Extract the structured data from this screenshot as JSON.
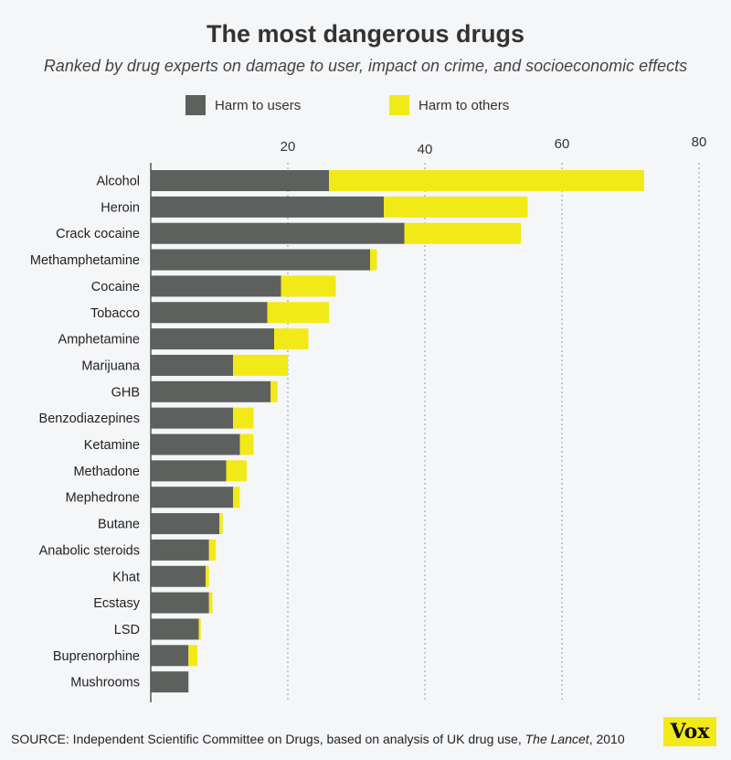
{
  "chart_data": {
    "type": "bar",
    "orientation": "horizontal",
    "stacked": true,
    "title": "The most dangerous drugs",
    "subtitle": "Ranked by drug experts on damage to user, impact on crime, and socioeconomic effects",
    "categories": [
      "Alcohol",
      "Heroin",
      "Crack cocaine",
      "Methamphetamine",
      "Cocaine",
      "Tobacco",
      "Amphetamine",
      "Marijuana",
      "GHB",
      "Benzodiazepines",
      "Ketamine",
      "Methadone",
      "Mephedrone",
      "Butane",
      "Anabolic steroids",
      "Khat",
      "Ecstasy",
      "LSD",
      "Buprenorphine",
      "Mushrooms"
    ],
    "series": [
      {
        "name": "Harm to users",
        "color": "#5e605e",
        "values": [
          26,
          34,
          37,
          32,
          19,
          17,
          18,
          12,
          17.5,
          12,
          13,
          11,
          12,
          10,
          8.5,
          8,
          8.5,
          7,
          5.5,
          5.5
        ]
      },
      {
        "name": "Harm to others",
        "color": "#f2e918",
        "values": [
          46,
          21,
          17,
          1,
          8,
          9,
          5,
          8,
          1,
          3,
          2,
          3,
          1,
          0.5,
          1,
          0.5,
          0.5,
          0.3,
          1.3,
          0
        ]
      }
    ],
    "xticks": [
      "20",
      "40",
      "60",
      "80"
    ],
    "xlim": [
      0,
      80
    ],
    "grid": true,
    "legend": "top"
  },
  "source": {
    "prefix": "SOURCE: Independent Scientific Committee on Drugs, based on analysis of UK drug use, ",
    "italic": "The Lancet",
    "suffix": ", 2010"
  },
  "logo": "Vox"
}
